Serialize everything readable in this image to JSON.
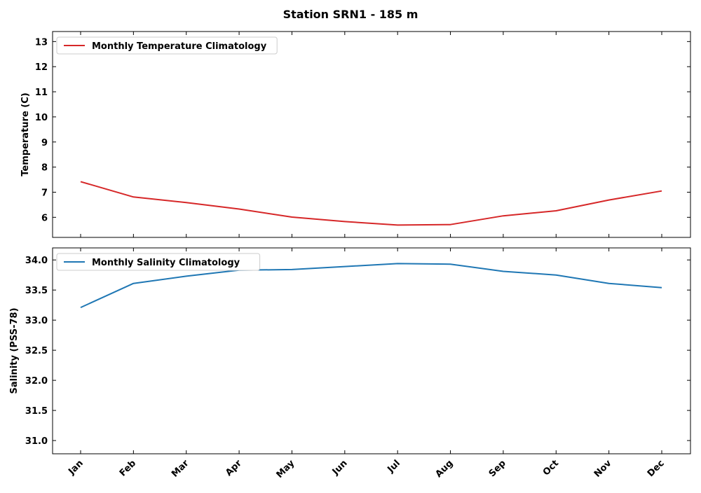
{
  "title": "Station SRN1 - 185 m",
  "chart_data": [
    {
      "type": "line",
      "ylabel": "Temperature (C)",
      "xlabel": "",
      "categories": [
        "Jan",
        "Feb",
        "Mar",
        "Apr",
        "May",
        "Jun",
        "Jul",
        "Aug",
        "Sep",
        "Oct",
        "Nov",
        "Dec"
      ],
      "yticks": [
        "6",
        "7",
        "8",
        "9",
        "10",
        "11",
        "12",
        "13"
      ],
      "ylim": [
        5.2,
        13.4
      ],
      "grid": false,
      "legend_position": "top-left",
      "series": [
        {
          "name": "Monthly Temperature Climatology",
          "color": "#d62728",
          "values": [
            7.42,
            6.81,
            6.59,
            6.33,
            6.01,
            5.83,
            5.69,
            5.71,
            6.06,
            6.26,
            6.69,
            7.05
          ]
        }
      ]
    },
    {
      "type": "line",
      "ylabel": "Salinity (PSS-78)",
      "xlabel": "",
      "categories": [
        "Jan",
        "Feb",
        "Mar",
        "Apr",
        "May",
        "Jun",
        "Jul",
        "Aug",
        "Sep",
        "Oct",
        "Nov",
        "Dec"
      ],
      "yticks": [
        "31.0",
        "31.5",
        "32.0",
        "32.5",
        "33.0",
        "33.5",
        "34.0"
      ],
      "ylim": [
        30.78,
        34.2
      ],
      "grid": false,
      "legend_position": "top-left",
      "series": [
        {
          "name": "Monthly Salinity Climatology",
          "color": "#1f77b4",
          "values": [
            33.21,
            33.61,
            33.73,
            33.83,
            33.84,
            33.89,
            33.94,
            33.93,
            33.81,
            33.75,
            33.61,
            33.54
          ]
        }
      ]
    }
  ]
}
